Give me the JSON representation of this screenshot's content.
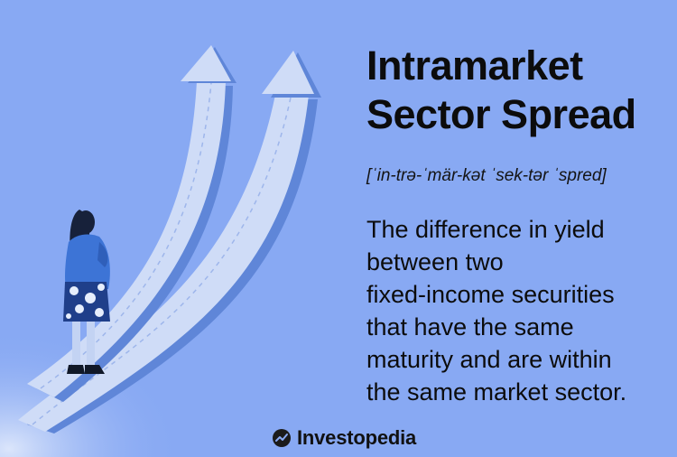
{
  "term": {
    "title_lines": [
      "Intramarket",
      "Sector Spread"
    ],
    "pronunciation": "[ˈin-trə-ˈmär-kət ˈsek-tər ˈspred]"
  },
  "definition": {
    "lines": [
      "The difference in yield",
      "between two",
      "fixed-income securities",
      "that have the same",
      "maturity and are within",
      "the same market sector."
    ]
  },
  "brand": {
    "name": "Investopedia",
    "icon": "investopedia-logo-icon"
  },
  "colors": {
    "background": "#88a9f3",
    "arrow": "#cfdcf7",
    "arrow_shadow": "#5f86d8",
    "text": "#0c0c0c",
    "figure_shirt": "#3d74d6",
    "figure_hair": "#17213a"
  }
}
